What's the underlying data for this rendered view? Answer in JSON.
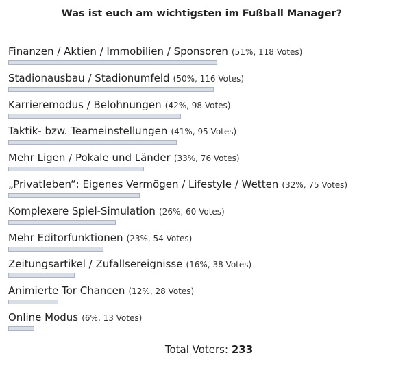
{
  "poll": {
    "title": "Was ist euch am wichtigsten im Fußball Manager?",
    "options": [
      {
        "label": "Finanzen / Aktien / Immobilien / Sponsoren",
        "stats": "(51%, 118 Votes)",
        "percent": 51
      },
      {
        "label": "Stadionausbau / Stadionumfeld",
        "stats": "(50%, 116 Votes)",
        "percent": 50
      },
      {
        "label": "Karrieremodus / Belohnungen",
        "stats": "(42%, 98 Votes)",
        "percent": 42
      },
      {
        "label": "Taktik- bzw. Teameinstellungen",
        "stats": "(41%, 95 Votes)",
        "percent": 41
      },
      {
        "label": "Mehr Ligen / Pokale und Länder",
        "stats": "(33%, 76 Votes)",
        "percent": 33
      },
      {
        "label": "„Privatleben“: Eigenes Vermögen / Lifestyle / Wetten",
        "stats": "(32%, 75 Votes)",
        "percent": 32
      },
      {
        "label": "Komplexere Spiel-Simulation",
        "stats": "(26%, 60 Votes)",
        "percent": 26
      },
      {
        "label": "Mehr Editorfunktionen",
        "stats": "(23%, 54 Votes)",
        "percent": 23
      },
      {
        "label": "Zeitungsartikel / Zufallsereignisse",
        "stats": "(16%, 38 Votes)",
        "percent": 16
      },
      {
        "label": "Animierte Tor Chancen",
        "stats": "(12%, 28 Votes)",
        "percent": 12
      },
      {
        "label": "Online Modus",
        "stats": "(6%, 13 Votes)",
        "percent": 6
      }
    ],
    "total_label": "Total Voters:",
    "total": 233
  }
}
